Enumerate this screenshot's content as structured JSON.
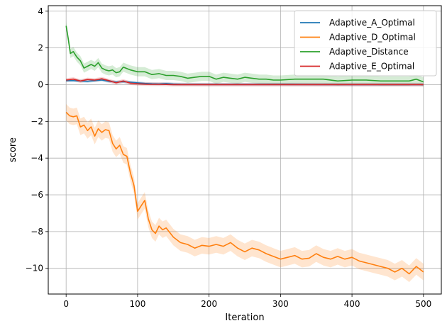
{
  "chart_data": {
    "type": "line",
    "title": "",
    "xlabel": "Iteration",
    "ylabel": "score",
    "xlim": [
      -25,
      525
    ],
    "ylim": [
      -11.4,
      4.3
    ],
    "xticks": [
      0,
      100,
      200,
      300,
      400,
      500
    ],
    "yticks": [
      4,
      2,
      0,
      -2,
      -4,
      -6,
      -8,
      -10
    ],
    "grid": true,
    "legend_position": "top-right",
    "series": [
      {
        "name": "Adaptive_A_Optimal",
        "color": "#1f77b4",
        "x": [
          0,
          10,
          20,
          30,
          40,
          50,
          60,
          70,
          80,
          90,
          100,
          110,
          120,
          130,
          140,
          150,
          160,
          200,
          300,
          400,
          500
        ],
        "y": [
          0.22,
          0.22,
          0.2,
          0.18,
          0.22,
          0.25,
          0.18,
          0.14,
          0.16,
          0.13,
          0.1,
          0.07,
          0.05,
          0.04,
          0.06,
          0.03,
          0.02,
          0.01,
          0.01,
          0.0,
          0.0
        ],
        "band": 0.08
      },
      {
        "name": "Adaptive_D_Optimal",
        "color": "#ff7f0e",
        "x": [
          0,
          5,
          10,
          15,
          20,
          25,
          30,
          35,
          40,
          45,
          50,
          55,
          60,
          65,
          70,
          75,
          80,
          85,
          90,
          95,
          100,
          105,
          110,
          115,
          120,
          125,
          130,
          135,
          140,
          150,
          160,
          170,
          180,
          190,
          200,
          210,
          220,
          230,
          240,
          250,
          260,
          270,
          280,
          290,
          300,
          310,
          320,
          330,
          340,
          350,
          360,
          370,
          380,
          390,
          400,
          410,
          420,
          430,
          440,
          450,
          460,
          470,
          480,
          490,
          500
        ],
        "y": [
          -1.5,
          -1.7,
          -1.75,
          -1.7,
          -2.3,
          -2.2,
          -2.5,
          -2.3,
          -2.8,
          -2.4,
          -2.6,
          -2.45,
          -2.5,
          -3.2,
          -3.5,
          -3.3,
          -3.8,
          -3.9,
          -4.8,
          -5.5,
          -6.9,
          -6.6,
          -6.3,
          -7.3,
          -7.9,
          -8.1,
          -7.7,
          -7.9,
          -7.8,
          -8.3,
          -8.6,
          -8.7,
          -8.9,
          -8.75,
          -8.8,
          -8.7,
          -8.8,
          -8.6,
          -8.9,
          -9.1,
          -8.9,
          -9.0,
          -9.2,
          -9.35,
          -9.5,
          -9.4,
          -9.3,
          -9.5,
          -9.45,
          -9.2,
          -9.4,
          -9.5,
          -9.35,
          -9.5,
          -9.4,
          -9.6,
          -9.7,
          -9.8,
          -9.9,
          -10.0,
          -10.2,
          -10.0,
          -10.3,
          -9.9,
          -10.2
        ],
        "band": 0.45
      },
      {
        "name": "Adaptive_Distance",
        "color": "#2ca02c",
        "x": [
          0,
          3,
          6,
          10,
          15,
          20,
          25,
          30,
          35,
          40,
          45,
          50,
          55,
          60,
          65,
          70,
          75,
          80,
          90,
          100,
          110,
          120,
          130,
          140,
          150,
          160,
          170,
          180,
          190,
          200,
          210,
          220,
          230,
          240,
          250,
          260,
          270,
          280,
          290,
          300,
          320,
          340,
          360,
          380,
          400,
          420,
          440,
          460,
          480,
          490,
          500
        ],
        "y": [
          3.2,
          2.5,
          1.7,
          1.8,
          1.5,
          1.3,
          0.9,
          1.0,
          1.1,
          1.0,
          1.2,
          0.9,
          0.8,
          0.75,
          0.8,
          0.65,
          0.7,
          0.95,
          0.8,
          0.7,
          0.7,
          0.55,
          0.6,
          0.5,
          0.5,
          0.45,
          0.35,
          0.4,
          0.45,
          0.45,
          0.3,
          0.4,
          0.35,
          0.3,
          0.4,
          0.35,
          0.3,
          0.3,
          0.25,
          0.25,
          0.3,
          0.3,
          0.3,
          0.2,
          0.25,
          0.25,
          0.2,
          0.2,
          0.2,
          0.3,
          0.15
        ],
        "band": 0.25
      },
      {
        "name": "Adaptive_E_Optimal",
        "color": "#d62728",
        "x": [
          0,
          10,
          20,
          30,
          40,
          50,
          60,
          70,
          80,
          90,
          100,
          110,
          120,
          130,
          140,
          150,
          200,
          300,
          400,
          500
        ],
        "y": [
          0.25,
          0.3,
          0.2,
          0.28,
          0.25,
          0.32,
          0.22,
          0.1,
          0.2,
          0.08,
          0.05,
          0.03,
          0.02,
          0.02,
          0.01,
          0.0,
          0.0,
          0.0,
          0.0,
          0.0
        ],
        "band": 0.1
      }
    ]
  }
}
